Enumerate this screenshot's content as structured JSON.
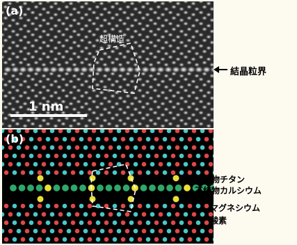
{
  "panel_a": {
    "label": "(a)",
    "scale_bar_label": "1 nm",
    "superstructure_label": "超構造",
    "grain_boundary_label": "結晶粒界"
  },
  "panel_b": {
    "label": "(b)",
    "legend": {
      "titanium": "不純物チタン",
      "calcium": "不純物カルシウム",
      "magnesium": "マグネシウム",
      "oxygen": "酸素"
    }
  },
  "colors": {
    "titanium": "#e8e03a",
    "calcium": "#2ea86a",
    "magnesium": "#4cc8c8",
    "oxygen": "#e04848"
  }
}
